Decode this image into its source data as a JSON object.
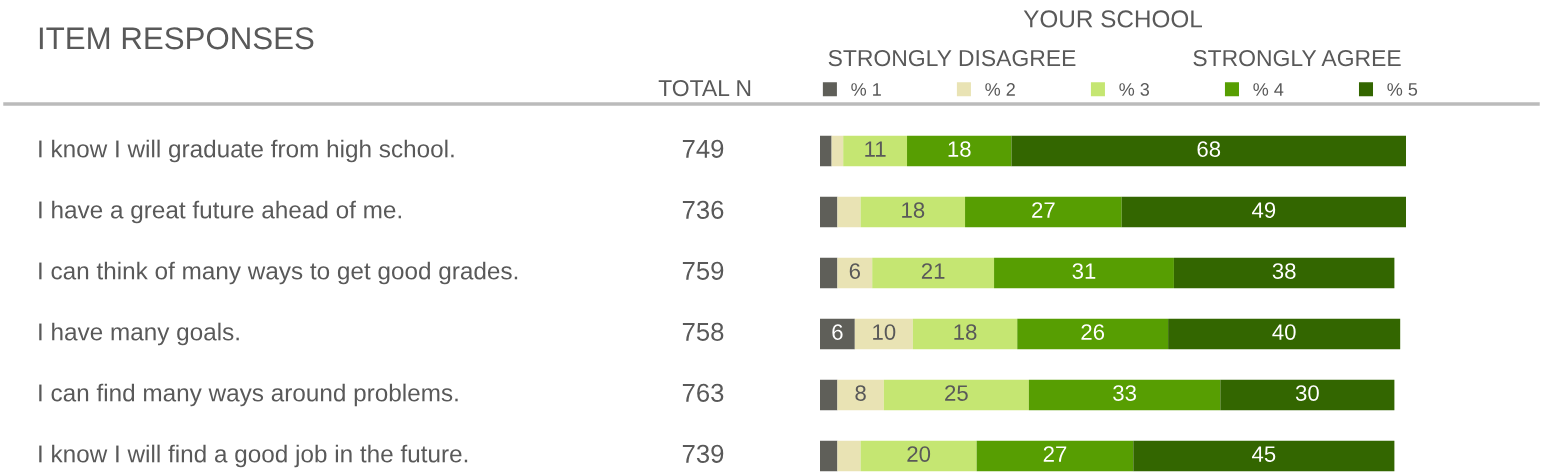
{
  "chart_data": {
    "type": "bar",
    "orientation": "horizontal",
    "stacked": true,
    "title": "ITEM RESPONSES",
    "categories": [
      "I know I will graduate from high school.",
      "I have a great future ahead of me.",
      "I can think of many ways to get good grades.",
      "I have many goals.",
      "I can find many ways around problems.",
      "I know I will find a good job in the future."
    ],
    "series": [
      {
        "name": "% 1",
        "color": "#5f5f59",
        "values": [
          2,
          3,
          3,
          6,
          3,
          3
        ],
        "value_labels": [
          null,
          null,
          null,
          "6",
          null,
          null
        ]
      },
      {
        "name": "% 2",
        "color": "#e9e3b4",
        "values": [
          2,
          4,
          6,
          10,
          8,
          4
        ],
        "value_labels": [
          null,
          null,
          "6",
          "10",
          "8",
          null
        ]
      },
      {
        "name": "% 3",
        "color": "#c5e672",
        "values": [
          11,
          18,
          21,
          18,
          25,
          20
        ],
        "value_labels": [
          "11",
          "18",
          "21",
          "18",
          "25",
          "20"
        ]
      },
      {
        "name": "% 4",
        "color": "#579e02",
        "values": [
          18,
          27,
          31,
          26,
          33,
          27
        ],
        "value_labels": [
          "18",
          "27",
          "31",
          "26",
          "33",
          "27"
        ]
      },
      {
        "name": "% 5",
        "color": "#336600",
        "values": [
          68,
          49,
          38,
          40,
          30,
          45
        ],
        "value_labels": [
          "68",
          "49",
          "38",
          "40",
          "30",
          "45"
        ]
      }
    ],
    "annotations": [
      "YOUR SCHOOL",
      "STRONGLY DISAGREE",
      "STRONGLY AGREE",
      "TOTAL N",
      "749",
      "736",
      "759",
      "758",
      "763",
      "739"
    ],
    "legend": "top",
    "tick_labels": false
  }
}
